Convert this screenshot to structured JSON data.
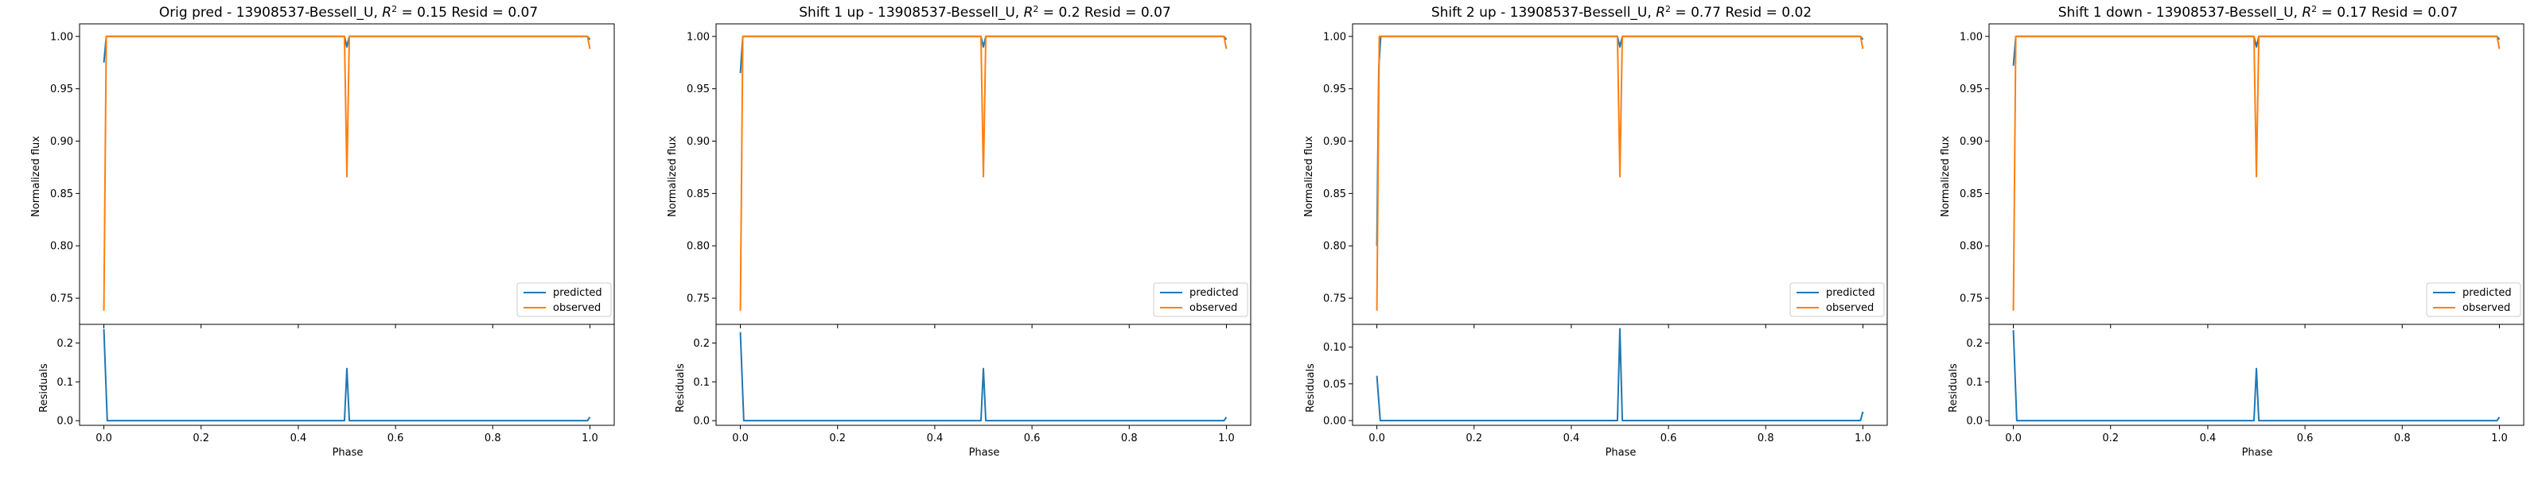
{
  "figure": {
    "panels": [
      {
        "title_main": "Orig pred - 13908537-Bessell_U, ",
        "title_r2": "0.15",
        "title_resid": "0.07"
      },
      {
        "title_main": "Shift 1 up - 13908537-Bessell_U, ",
        "title_r2": "0.2",
        "title_resid": "0.07"
      },
      {
        "title_main": "Shift 2 up - 13908537-Bessell_U, ",
        "title_r2": "0.77",
        "title_resid": "0.02"
      },
      {
        "title_main": "Shift 1 down - 13908537-Bessell_U, ",
        "title_r2": "0.17",
        "title_resid": "0.07"
      }
    ],
    "r2_symbol": "R",
    "r2_sup": "2",
    "r2_eq": " = ",
    "resid_prefix": " Resid = ",
    "colors": {
      "predicted": "#1f77b4",
      "observed": "#ff7f0e"
    }
  },
  "chart_data": [
    {
      "type": "line",
      "title": "Orig pred - 13908537-Bessell_U, R^2 = 0.15 Resid = 0.07",
      "top": {
        "ylabel": "Normalized flux",
        "ylim": [
          0.725,
          1.012
        ],
        "yticks": [
          "0.75",
          "0.80",
          "0.85",
          "0.90",
          "0.95",
          "1.00"
        ],
        "legend": [
          "predicted",
          "observed"
        ],
        "legend_position": "lower right",
        "series": [
          {
            "name": "predicted",
            "x": [
              0.0,
              0.005,
              0.495,
              0.5,
              0.505,
              0.995,
              1.0
            ],
            "y": [
              0.975,
              1.0,
              1.0,
              0.99,
              1.0,
              1.0,
              0.997
            ]
          },
          {
            "name": "observed",
            "x": [
              0.0,
              0.005,
              0.495,
              0.5,
              0.505,
              0.995,
              1.0
            ],
            "y": [
              0.738,
              1.0,
              1.0,
              0.866,
              1.0,
              1.0,
              0.988
            ]
          }
        ]
      },
      "bottom": {
        "xlabel": "Phase",
        "ylabel": "Residuals",
        "xlim": [
          -0.05,
          1.05
        ],
        "xticks": [
          "0.0",
          "0.2",
          "0.4",
          "0.6",
          "0.8",
          "1.0"
        ],
        "ylim": [
          -0.012,
          0.248
        ],
        "yticks": [
          "0.0",
          "0.1",
          "0.2"
        ],
        "series": [
          {
            "name": "residuals",
            "x": [
              0.0,
              0.007,
              0.495,
              0.5,
              0.505,
              0.995,
              1.0
            ],
            "y": [
              0.236,
              0.0,
              0.0,
              0.134,
              0.0,
              0.0,
              0.009
            ]
          }
        ]
      }
    },
    {
      "type": "line",
      "title": "Shift 1 up - 13908537-Bessell_U, R^2 = 0.2 Resid = 0.07",
      "top": {
        "ylabel": "Normalized flux",
        "ylim": [
          0.725,
          1.012
        ],
        "yticks": [
          "0.75",
          "0.80",
          "0.85",
          "0.90",
          "0.95",
          "1.00"
        ],
        "legend": [
          "predicted",
          "observed"
        ],
        "legend_position": "lower right",
        "series": [
          {
            "name": "predicted",
            "x": [
              0.0,
              0.005,
              0.495,
              0.5,
              0.505,
              0.995,
              1.0
            ],
            "y": [
              0.965,
              1.0,
              1.0,
              0.99,
              1.0,
              1.0,
              0.997
            ]
          },
          {
            "name": "observed",
            "x": [
              0.0,
              0.005,
              0.495,
              0.5,
              0.505,
              0.995,
              1.0
            ],
            "y": [
              0.738,
              1.0,
              1.0,
              0.866,
              1.0,
              1.0,
              0.988
            ]
          }
        ]
      },
      "bottom": {
        "xlabel": "Phase",
        "ylabel": "Residuals",
        "xlim": [
          -0.05,
          1.05
        ],
        "xticks": [
          "0.0",
          "0.2",
          "0.4",
          "0.6",
          "0.8",
          "1.0"
        ],
        "ylim": [
          -0.012,
          0.248
        ],
        "yticks": [
          "0.0",
          "0.1",
          "0.2"
        ],
        "series": [
          {
            "name": "residuals",
            "x": [
              0.0,
              0.007,
              0.495,
              0.5,
              0.505,
              0.995,
              1.0
            ],
            "y": [
              0.228,
              0.0,
              0.0,
              0.134,
              0.0,
              0.0,
              0.009
            ]
          }
        ]
      }
    },
    {
      "type": "line",
      "title": "Shift 2 up - 13908537-Bessell_U, R^2 = 0.77 Resid = 0.02",
      "top": {
        "ylabel": "Normalized flux",
        "ylim": [
          0.725,
          1.012
        ],
        "yticks": [
          "0.75",
          "0.80",
          "0.85",
          "0.90",
          "0.95",
          "1.00"
        ],
        "legend": [
          "predicted",
          "observed"
        ],
        "legend_position": "lower right",
        "series": [
          {
            "name": "predicted",
            "x": [
              0.0,
              0.004,
              0.008,
              0.495,
              0.5,
              0.505,
              0.995,
              1.0
            ],
            "y": [
              0.8,
              0.97,
              1.0,
              1.0,
              0.99,
              1.0,
              1.0,
              0.997
            ]
          },
          {
            "name": "observed",
            "x": [
              0.0,
              0.005,
              0.495,
              0.5,
              0.505,
              0.995,
              1.0
            ],
            "y": [
              0.738,
              1.0,
              1.0,
              0.866,
              1.0,
              1.0,
              0.988
            ]
          }
        ]
      },
      "bottom": {
        "xlabel": "Phase",
        "ylabel": "Residuals",
        "xlim": [
          -0.05,
          1.05
        ],
        "xticks": [
          "0.0",
          "0.2",
          "0.4",
          "0.6",
          "0.8",
          "1.0"
        ],
        "ylim": [
          -0.0065,
          0.131
        ],
        "yticks": [
          "0.00",
          "0.05",
          "0.10"
        ],
        "series": [
          {
            "name": "residuals",
            "x": [
              0.0,
              0.007,
              0.495,
              0.5,
              0.505,
              0.995,
              1.0
            ],
            "y": [
              0.061,
              0.0,
              0.0,
              0.125,
              0.0,
              0.0,
              0.012
            ]
          }
        ]
      }
    },
    {
      "type": "line",
      "title": "Shift 1 down - 13908537-Bessell_U, R^2 = 0.17 Resid = 0.07",
      "top": {
        "ylabel": "Normalized flux",
        "ylim": [
          0.725,
          1.012
        ],
        "yticks": [
          "0.75",
          "0.80",
          "0.85",
          "0.90",
          "0.95",
          "1.00"
        ],
        "legend": [
          "predicted",
          "observed"
        ],
        "legend_position": "lower right",
        "series": [
          {
            "name": "predicted",
            "x": [
              0.0,
              0.005,
              0.495,
              0.5,
              0.505,
              0.995,
              1.0
            ],
            "y": [
              0.972,
              1.0,
              1.0,
              0.99,
              1.0,
              1.0,
              0.997
            ]
          },
          {
            "name": "observed",
            "x": [
              0.0,
              0.005,
              0.495,
              0.5,
              0.505,
              0.995,
              1.0
            ],
            "y": [
              0.738,
              1.0,
              1.0,
              0.866,
              1.0,
              1.0,
              0.988
            ]
          }
        ]
      },
      "bottom": {
        "xlabel": "Phase",
        "ylabel": "Residuals",
        "xlim": [
          -0.05,
          1.05
        ],
        "xticks": [
          "0.0",
          "0.2",
          "0.4",
          "0.6",
          "0.8",
          "1.0"
        ],
        "ylim": [
          -0.012,
          0.248
        ],
        "yticks": [
          "0.0",
          "0.1",
          "0.2"
        ],
        "series": [
          {
            "name": "residuals",
            "x": [
              0.0,
              0.007,
              0.495,
              0.5,
              0.505,
              0.995,
              1.0
            ],
            "y": [
              0.233,
              0.0,
              0.0,
              0.134,
              0.0,
              0.0,
              0.009
            ]
          }
        ]
      }
    }
  ]
}
